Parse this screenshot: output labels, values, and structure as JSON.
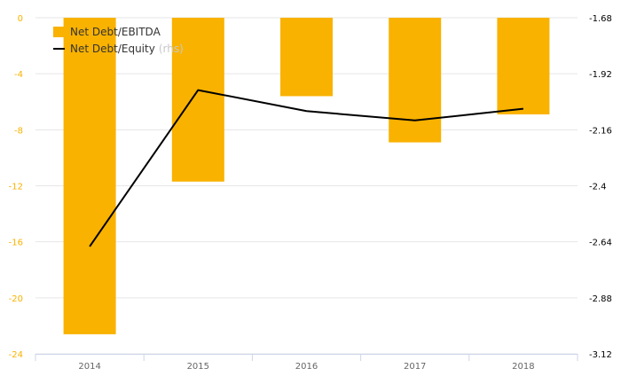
{
  "chart_data": {
    "type": "bar",
    "categories": [
      "2014",
      "2015",
      "2016",
      "2017",
      "2018"
    ],
    "series": [
      {
        "name": "Net Debt/EBITDA",
        "type": "bar",
        "axis": "left",
        "color": "#f9b200",
        "values": [
          -22.6,
          -11.7,
          -5.6,
          -8.9,
          -6.9
        ]
      },
      {
        "name": "Net Debt/Equity",
        "type": "line",
        "axis": "right",
        "color": "#000000",
        "values": [
          -2.66,
          -1.99,
          -2.08,
          -2.12,
          -2.07
        ]
      }
    ],
    "y_left": {
      "ticks": [
        "0",
        "-4",
        "-8",
        "-12",
        "-16",
        "-20",
        "-24"
      ],
      "ylim": [
        -24,
        0
      ],
      "tick_color": "#f9b200"
    },
    "y_right": {
      "ticks": [
        "-1.68",
        "-1.92",
        "-2.16",
        "-2.4",
        "-2.64",
        "-2.88",
        "-3.12"
      ],
      "ylim": [
        -3.12,
        -1.68
      ],
      "tick_color": "#000000"
    },
    "grid": true,
    "legend": {
      "placement": "top-left",
      "items": [
        {
          "label": "Net Debt/EBITDA",
          "suffix": ""
        },
        {
          "label": "Net Debt/Equity",
          "suffix": "(rhs)"
        }
      ]
    }
  }
}
